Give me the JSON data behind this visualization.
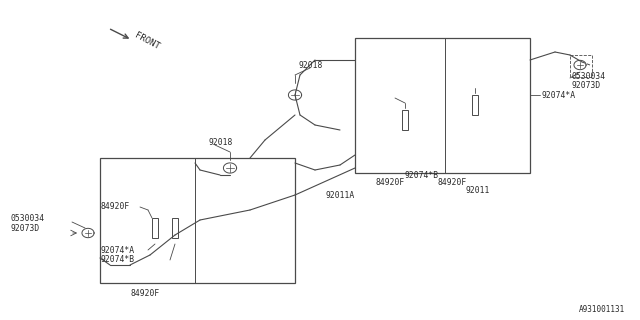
{
  "bg_color": "#ffffff",
  "line_color": "#4a4a4a",
  "text_color": "#2a2a2a",
  "fig_width": 6.4,
  "fig_height": 3.2,
  "dpi": 100,
  "catalog_number": "A931001131",
  "labels": {
    "front": "FRONT",
    "92018_top": "92018",
    "92018_left": "92018",
    "0530034_right": "0530034",
    "92073D_right": "92073D",
    "92074A_right": "92074*A",
    "92074B_right": "92074*B",
    "84920F_r1": "84920F",
    "84920F_r2": "84920F",
    "92074B_mid": "92074*B",
    "92011": "92011",
    "92011A": "92011A",
    "84920F_l1": "84920F",
    "92074A_l": "92074*A",
    "92074B_l": "92074*B",
    "84920F_lbot": "84920F",
    "0530034_left": "0530034",
    "92073D_left": "92073D"
  }
}
